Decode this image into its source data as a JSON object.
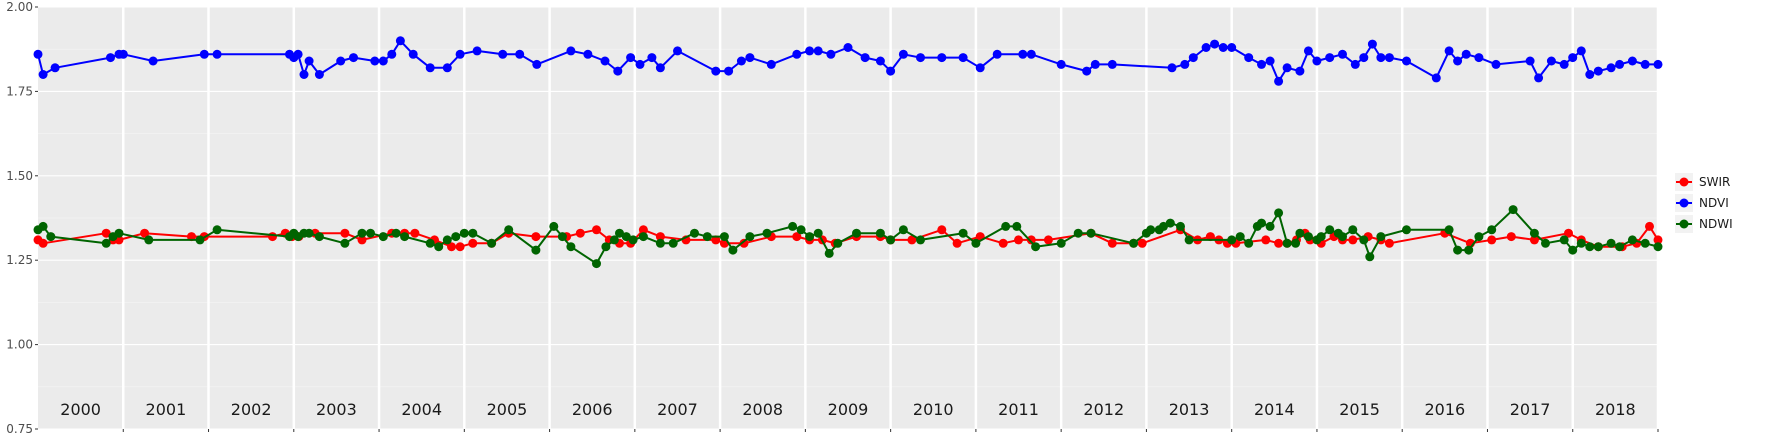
{
  "chart_data": {
    "type": "line",
    "title": "",
    "xlabel": "",
    "ylabel": "",
    "ylim": [
      0.75,
      2.0
    ],
    "xlim": [
      2000.0,
      2019.0
    ],
    "grid": true,
    "legend_position": "right",
    "y_ticks": [
      "0.75",
      "1.00",
      "1.25",
      "1.50",
      "1.75",
      "2.00"
    ],
    "year_labels": [
      "2000",
      "2001",
      "2002",
      "2003",
      "2004",
      "2005",
      "2006",
      "2007",
      "2008",
      "2009",
      "2010",
      "2011",
      "2012",
      "2013",
      "2014",
      "2015",
      "2016",
      "2017",
      "2018"
    ],
    "series": [
      {
        "name": "SWIR",
        "color": "#ff0000",
        "x": [
          2000.0,
          2000.06,
          2000.8,
          2000.88,
          2000.95,
          2001.25,
          2001.8,
          2001.95,
          2002.75,
          2002.9,
          2002.98,
          2003.06,
          2003.25,
          2003.6,
          2003.8,
          2004.15,
          2004.3,
          2004.42,
          2004.65,
          2004.85,
          2004.95,
          2005.1,
          2005.32,
          2005.52,
          2005.84,
          2006.2,
          2006.36,
          2006.55,
          2006.7,
          2006.82,
          2006.95,
          2007.1,
          2007.3,
          2007.6,
          2007.95,
          2008.05,
          2008.28,
          2008.6,
          2008.9,
          2009.05,
          2009.2,
          2009.35,
          2009.6,
          2009.88,
          2010.0,
          2010.25,
          2010.6,
          2010.78,
          2011.05,
          2011.32,
          2011.5,
          2011.65,
          2011.85,
          2012.35,
          2012.6,
          2012.85,
          2012.95,
          2013.4,
          2013.6,
          2013.75,
          2013.85,
          2013.95,
          2014.05,
          2014.4,
          2014.55,
          2014.65,
          2014.76,
          2014.86,
          2014.92,
          2015.05,
          2015.2,
          2015.3,
          2015.42,
          2015.6,
          2015.75,
          2015.85,
          2016.5,
          2016.8,
          2017.05,
          2017.28,
          2017.55,
          2017.95,
          2018.1,
          2018.3,
          2018.58,
          2018.75,
          2018.9,
          2019.0
        ],
        "values": [
          1.31,
          1.3,
          1.33,
          1.31,
          1.31,
          1.33,
          1.32,
          1.32,
          1.32,
          1.33,
          1.32,
          1.32,
          1.33,
          1.33,
          1.31,
          1.33,
          1.33,
          1.33,
          1.31,
          1.29,
          1.29,
          1.3,
          1.3,
          1.33,
          1.32,
          1.32,
          1.33,
          1.34,
          1.31,
          1.3,
          1.3,
          1.34,
          1.32,
          1.31,
          1.31,
          1.3,
          1.3,
          1.32,
          1.32,
          1.31,
          1.31,
          1.3,
          1.32,
          1.32,
          1.31,
          1.31,
          1.34,
          1.3,
          1.32,
          1.3,
          1.31,
          1.31,
          1.31,
          1.33,
          1.3,
          1.3,
          1.3,
          1.34,
          1.31,
          1.32,
          1.31,
          1.3,
          1.3,
          1.31,
          1.3,
          1.3,
          1.31,
          1.33,
          1.31,
          1.3,
          1.32,
          1.31,
          1.31,
          1.32,
          1.31,
          1.3,
          1.33,
          1.3,
          1.31,
          1.32,
          1.31,
          1.33,
          1.31,
          1.29,
          1.29,
          1.3,
          1.35,
          1.31
        ]
      },
      {
        "name": "NDVI",
        "color": "#0000ff",
        "x": [
          2000.0,
          2000.06,
          2000.2,
          2000.85,
          2000.95,
          2001.0,
          2001.35,
          2001.95,
          2002.1,
          2002.95,
          2003.0,
          2003.05,
          2003.12,
          2003.18,
          2003.3,
          2003.55,
          2003.7,
          2003.95,
          2004.05,
          2004.15,
          2004.25,
          2004.4,
          2004.6,
          2004.8,
          2004.95,
          2005.15,
          2005.45,
          2005.65,
          2005.85,
          2006.25,
          2006.45,
          2006.65,
          2006.8,
          2006.95,
          2007.06,
          2007.2,
          2007.3,
          2007.5,
          2007.95,
          2008.1,
          2008.25,
          2008.35,
          2008.6,
          2008.9,
          2009.05,
          2009.15,
          2009.3,
          2009.5,
          2009.7,
          2009.88,
          2010.0,
          2010.15,
          2010.35,
          2010.6,
          2010.85,
          2011.05,
          2011.25,
          2011.55,
          2011.65,
          2012.0,
          2012.3,
          2012.4,
          2012.6,
          2013.3,
          2013.45,
          2013.55,
          2013.7,
          2013.8,
          2013.9,
          2014.0,
          2014.2,
          2014.35,
          2014.45,
          2014.55,
          2014.65,
          2014.8,
          2014.9,
          2015.0,
          2015.15,
          2015.3,
          2015.45,
          2015.55,
          2015.65,
          2015.75,
          2015.85,
          2016.05,
          2016.4,
          2016.55,
          2016.65,
          2016.75,
          2016.9,
          2017.1,
          2017.5,
          2017.6,
          2017.75,
          2017.9,
          2018.0,
          2018.1,
          2018.2,
          2018.3,
          2018.45,
          2018.55,
          2018.7,
          2018.85,
          2019.0
        ],
        "values": [
          1.86,
          1.8,
          1.82,
          1.85,
          1.86,
          1.86,
          1.84,
          1.86,
          1.86,
          1.86,
          1.85,
          1.86,
          1.8,
          1.84,
          1.8,
          1.84,
          1.85,
          1.84,
          1.84,
          1.86,
          1.9,
          1.86,
          1.82,
          1.82,
          1.86,
          1.87,
          1.86,
          1.86,
          1.83,
          1.87,
          1.86,
          1.84,
          1.81,
          1.85,
          1.83,
          1.85,
          1.82,
          1.87,
          1.81,
          1.81,
          1.84,
          1.85,
          1.83,
          1.86,
          1.87,
          1.87,
          1.86,
          1.88,
          1.85,
          1.84,
          1.81,
          1.86,
          1.85,
          1.85,
          1.85,
          1.82,
          1.86,
          1.86,
          1.86,
          1.83,
          1.81,
          1.83,
          1.83,
          1.82,
          1.83,
          1.85,
          1.88,
          1.89,
          1.88,
          1.88,
          1.85,
          1.83,
          1.84,
          1.78,
          1.82,
          1.81,
          1.87,
          1.84,
          1.85,
          1.86,
          1.83,
          1.85,
          1.89,
          1.85,
          1.85,
          1.84,
          1.79,
          1.87,
          1.84,
          1.86,
          1.85,
          1.83,
          1.84,
          1.79,
          1.84,
          1.83,
          1.85,
          1.87,
          1.8,
          1.81,
          1.82,
          1.83,
          1.84,
          1.83,
          1.83
        ]
      },
      {
        "name": "NDWI",
        "color": "#006400",
        "x": [
          2000.0,
          2000.06,
          2000.15,
          2000.8,
          2000.88,
          2000.95,
          2001.3,
          2001.9,
          2002.1,
          2002.95,
          2003.0,
          2003.05,
          2003.12,
          2003.18,
          2003.3,
          2003.6,
          2003.8,
          2003.9,
          2004.05,
          2004.2,
          2004.3,
          2004.6,
          2004.7,
          2004.8,
          2004.9,
          2005.0,
          2005.1,
          2005.32,
          2005.52,
          2005.84,
          2006.05,
          2006.15,
          2006.25,
          2006.55,
          2006.66,
          2006.76,
          2006.82,
          2006.9,
          2006.98,
          2007.1,
          2007.3,
          2007.45,
          2007.7,
          2007.85,
          2008.05,
          2008.15,
          2008.35,
          2008.55,
          2008.85,
          2008.95,
          2009.05,
          2009.15,
          2009.28,
          2009.38,
          2009.6,
          2009.88,
          2010.0,
          2010.15,
          2010.35,
          2010.85,
          2011.0,
          2011.35,
          2011.48,
          2011.7,
          2012.0,
          2012.2,
          2012.35,
          2012.85,
          2013.0,
          2013.05,
          2013.15,
          2013.2,
          2013.28,
          2013.4,
          2013.5,
          2014.0,
          2014.1,
          2014.2,
          2014.3,
          2014.35,
          2014.45,
          2014.55,
          2014.65,
          2014.75,
          2014.8,
          2014.9,
          2015.0,
          2015.05,
          2015.15,
          2015.25,
          2015.3,
          2015.42,
          2015.55,
          2015.62,
          2015.75,
          2016.05,
          2016.55,
          2016.65,
          2016.78,
          2016.9,
          2017.05,
          2017.3,
          2017.55,
          2017.68,
          2017.9,
          2018.0,
          2018.1,
          2018.2,
          2018.3,
          2018.45,
          2018.55,
          2018.7,
          2018.85,
          2019.0
        ],
        "values": [
          1.34,
          1.35,
          1.32,
          1.3,
          1.32,
          1.33,
          1.31,
          1.31,
          1.34,
          1.32,
          1.33,
          1.32,
          1.33,
          1.33,
          1.32,
          1.3,
          1.33,
          1.33,
          1.32,
          1.33,
          1.32,
          1.3,
          1.29,
          1.31,
          1.32,
          1.33,
          1.33,
          1.3,
          1.34,
          1.28,
          1.35,
          1.32,
          1.29,
          1.24,
          1.29,
          1.31,
          1.33,
          1.32,
          1.31,
          1.32,
          1.3,
          1.3,
          1.33,
          1.32,
          1.32,
          1.28,
          1.32,
          1.33,
          1.35,
          1.34,
          1.32,
          1.33,
          1.27,
          1.3,
          1.33,
          1.33,
          1.31,
          1.34,
          1.31,
          1.33,
          1.3,
          1.35,
          1.35,
          1.29,
          1.3,
          1.33,
          1.33,
          1.3,
          1.33,
          1.34,
          1.34,
          1.35,
          1.36,
          1.35,
          1.31,
          1.31,
          1.32,
          1.3,
          1.35,
          1.36,
          1.35,
          1.39,
          1.3,
          1.3,
          1.33,
          1.32,
          1.31,
          1.32,
          1.34,
          1.33,
          1.32,
          1.34,
          1.31,
          1.26,
          1.32,
          1.34,
          1.34,
          1.28,
          1.28,
          1.32,
          1.34,
          1.4,
          1.33,
          1.3,
          1.31,
          1.28,
          1.3,
          1.29,
          1.29,
          1.3,
          1.29,
          1.31,
          1.3,
          1.29
        ]
      }
    ]
  }
}
